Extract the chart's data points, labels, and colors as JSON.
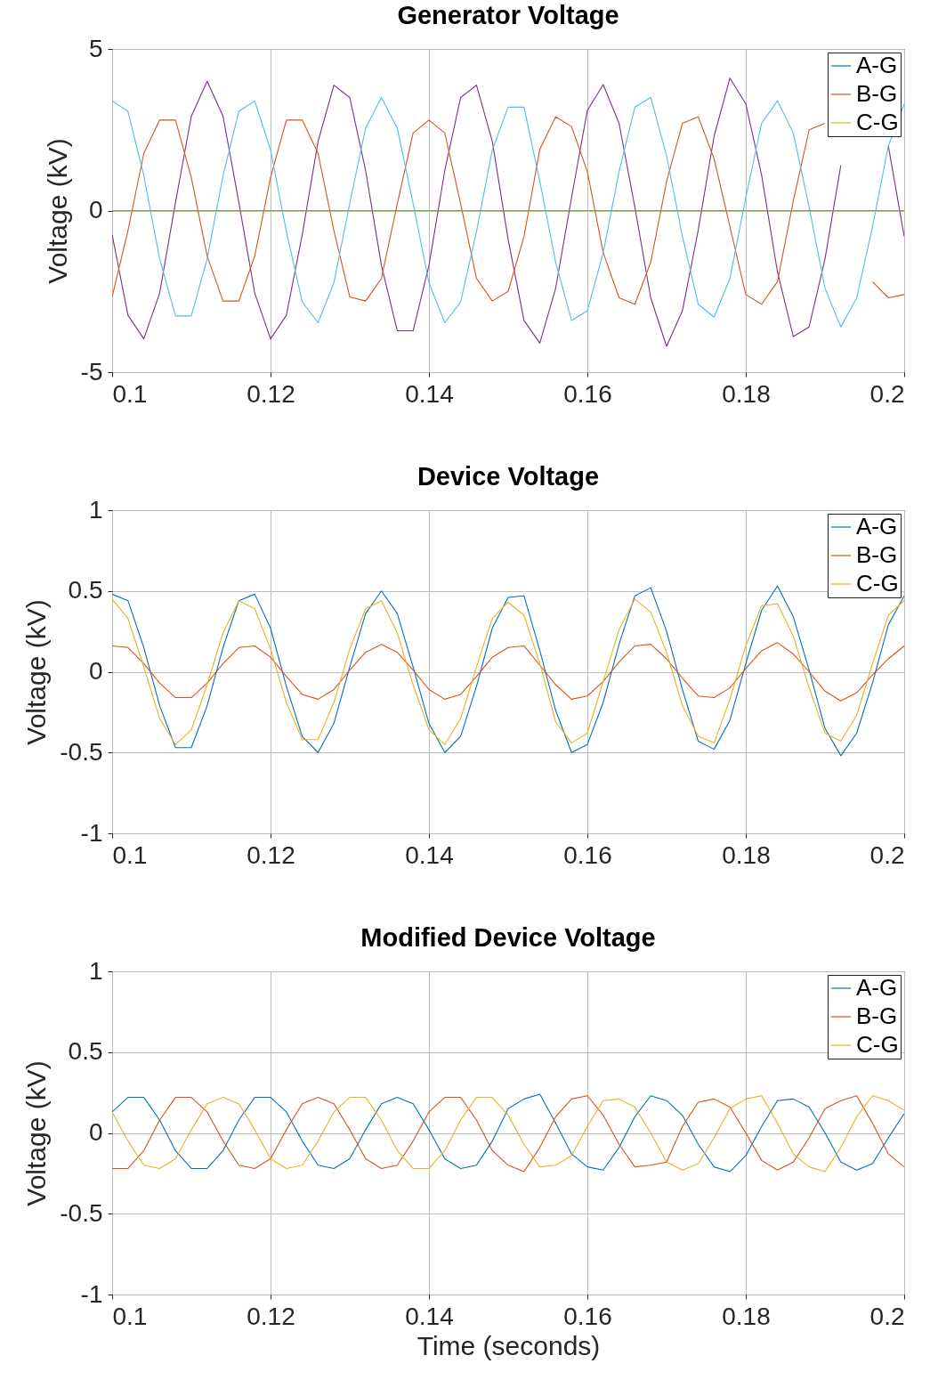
{
  "chart_data": [
    {
      "type": "line",
      "title": "Generator Voltage",
      "ylabel": "Voltage (kV)",
      "xlim": [
        0.1,
        0.2
      ],
      "xticks": [
        0.1,
        0.12,
        0.14,
        0.16,
        0.18,
        0.2
      ],
      "ylim": [
        -5,
        5
      ],
      "yticks": [
        -5,
        0,
        5
      ],
      "grid": true,
      "legend": "top right",
      "x": [
        0.1,
        0.102,
        0.104,
        0.106,
        0.108,
        0.11,
        0.112,
        0.114,
        0.116,
        0.118,
        0.12,
        0.122,
        0.124,
        0.126,
        0.128,
        0.13,
        0.132,
        0.134,
        0.136,
        0.138,
        0.14,
        0.142,
        0.144,
        0.146,
        0.148,
        0.15,
        0.152,
        0.154,
        0.156,
        0.158,
        0.16,
        0.162,
        0.164,
        0.166,
        0.168,
        0.17,
        0.172,
        0.174,
        0.176,
        0.178,
        0.18,
        0.182,
        0.184,
        0.186,
        0.188,
        0.19,
        0.192,
        0.194,
        0.196,
        0.198,
        0.2
      ],
      "series": [
        {
          "name": "A-G",
          "color": "#0072bd",
          "values": [
            null,
            null,
            null,
            null,
            null,
            null,
            null,
            null,
            null,
            null,
            null,
            null,
            null,
            null,
            null,
            null,
            null,
            null,
            null,
            null,
            null,
            null,
            null,
            null,
            null,
            null,
            null,
            null,
            null,
            null,
            null,
            null,
            null,
            null,
            null,
            null,
            null,
            null,
            null,
            null,
            null,
            null,
            null,
            null,
            null,
            null,
            null,
            null,
            null,
            null,
            null
          ]
        },
        {
          "color": "#7e2f8e",
          "values": [
            -0.75,
            -3.24,
            -3.97,
            -2.55,
            0.25,
            2.92,
            4,
            2.92,
            0.25,
            -2.55,
            -3.97,
            -3.24,
            -0.75,
            2.14,
            3.88,
            3.5,
            1.24,
            -1.7,
            -3.72,
            -3.72,
            -1.7,
            1.24,
            3.5,
            3.88,
            2.14,
            -0.9,
            -3.4,
            -4.1,
            -2.4,
            0.4,
            3.1,
            3.9,
            2.7,
            0.1,
            -2.7,
            -4.2,
            -3.1,
            -0.6,
            2.3,
            4.1,
            3.3,
            1.1,
            -1.9,
            -3.9,
            -3.6,
            -1.5,
            1.4,
            null,
            null,
            2.0,
            -0.8
          ]
        },
        {
          "name": "B-G",
          "color": "#d95319",
          "values": [
            -2.67,
            -0.62,
            1.77,
            2.8,
            2.8,
            1.02,
            -1.41,
            -2.8,
            -2.8,
            -1.41,
            1.02,
            2.8,
            2.8,
            1.77,
            -0.62,
            -2.67,
            -2.8,
            -2.1,
            0.21,
            2.4,
            2.8,
            2.4,
            0.21,
            -2.1,
            -2.8,
            -2.5,
            -0.8,
            1.9,
            2.9,
            2.6,
            1.2,
            -1.3,
            -2.7,
            -2.9,
            -1.6,
            0.9,
            2.7,
            2.9,
            1.6,
            -0.5,
            -2.6,
            -2.9,
            -2.2,
            0.3,
            2.5,
            2.7,
            null,
            null,
            -2.2,
            -2.7,
            -2.6
          ]
        },
        {
          "name": "C-G",
          "color": "#edb120",
          "values": [
            null,
            null,
            null,
            null,
            null,
            null,
            null,
            null,
            null,
            null,
            null,
            null,
            null,
            null,
            null,
            null,
            null,
            null,
            null,
            null,
            null,
            null,
            null,
            null,
            null,
            null,
            null,
            null,
            null,
            null,
            null,
            null,
            null,
            null,
            null,
            null,
            null,
            null,
            null,
            null,
            null,
            null,
            null,
            null,
            null,
            null,
            null,
            null,
            null,
            null,
            null
          ]
        },
        {
          "color": "#4dbeee",
          "values": [
            3.39,
            3.07,
            1.08,
            -1.49,
            -3.26,
            -3.26,
            -1.49,
            1.08,
            3.07,
            3.39,
            1.88,
            -0.65,
            -2.83,
            -3.47,
            -2.23,
            0.22,
            2.55,
            3.5,
            2.55,
            0.22,
            -2.23,
            -3.47,
            -2.83,
            -0.65,
            1.88,
            3.2,
            3.2,
            0.9,
            -1.6,
            -3.4,
            -3.1,
            -1.3,
            1.2,
            3.2,
            3.5,
            1.7,
            -0.8,
            -2.9,
            -3.3,
            -2.1,
            0.4,
            2.7,
            3.4,
            2.4,
            0.1,
            -2.4,
            -3.6,
            -2.7,
            -0.5,
            2.0,
            3.3
          ]
        },
        {
          "color": "#77ac30",
          "x": [
            0.1,
            0.2
          ],
          "values": [
            0,
            0
          ]
        }
      ]
    },
    {
      "type": "line",
      "title": "Device Voltage",
      "ylabel": "Voltage (kV)",
      "xlim": [
        0.1,
        0.2
      ],
      "xticks": [
        0.1,
        0.12,
        0.14,
        0.16,
        0.18,
        0.2
      ],
      "ylim": [
        -1,
        1
      ],
      "yticks": [
        -1,
        -0.5,
        0,
        0.5,
        1
      ],
      "grid": true,
      "legend": "top right",
      "x": [
        0.1,
        0.102,
        0.104,
        0.106,
        0.108,
        0.11,
        0.112,
        0.114,
        0.116,
        0.118,
        0.12,
        0.122,
        0.124,
        0.126,
        0.128,
        0.13,
        0.132,
        0.134,
        0.136,
        0.138,
        0.14,
        0.142,
        0.144,
        0.146,
        0.148,
        0.15,
        0.152,
        0.154,
        0.156,
        0.158,
        0.16,
        0.162,
        0.164,
        0.166,
        0.168,
        0.17,
        0.172,
        0.174,
        0.176,
        0.178,
        0.18,
        0.182,
        0.184,
        0.186,
        0.188,
        0.19,
        0.192,
        0.194,
        0.196,
        0.198,
        0.2
      ],
      "series": [
        {
          "name": "A-G",
          "color": "#0072bd",
          "values": [
            0.48,
            0.44,
            0.15,
            -0.21,
            -0.47,
            -0.47,
            -0.21,
            0.15,
            0.44,
            0.48,
            0.27,
            -0.09,
            -0.4,
            -0.5,
            -0.32,
            0.03,
            0.36,
            0.5,
            0.36,
            0.03,
            -0.32,
            -0.5,
            -0.4,
            -0.09,
            0.27,
            0.46,
            0.47,
            0.13,
            -0.24,
            -0.5,
            -0.45,
            -0.19,
            0.17,
            0.47,
            0.52,
            0.25,
            -0.11,
            -0.43,
            -0.48,
            -0.3,
            0.05,
            0.38,
            0.53,
            0.34,
            0.01,
            -0.35,
            -0.52,
            -0.38,
            -0.07,
            0.29,
            0.47
          ]
        },
        {
          "name": "B-G",
          "color": "#d95319",
          "values": [
            0.16,
            0.15,
            0.05,
            -0.07,
            -0.16,
            -0.16,
            -0.07,
            0.05,
            0.15,
            0.16,
            0.09,
            -0.03,
            -0.14,
            -0.17,
            -0.11,
            0.01,
            0.12,
            0.17,
            0.12,
            0.01,
            -0.11,
            -0.17,
            -0.14,
            -0.03,
            0.09,
            0.15,
            0.16,
            0.04,
            -0.08,
            -0.17,
            -0.15,
            -0.06,
            0.06,
            0.16,
            0.17,
            0.08,
            -0.04,
            -0.15,
            -0.16,
            -0.1,
            0.02,
            0.13,
            0.18,
            0.11,
            0,
            -0.12,
            -0.18,
            -0.13,
            -0.02,
            0.08,
            0.16
          ]
        },
        {
          "name": "C-G",
          "color": "#edb120",
          "values": [
            0.45,
            0.33,
            0.03,
            -0.29,
            -0.45,
            -0.36,
            -0.08,
            0.24,
            0.44,
            0.39,
            0.14,
            -0.19,
            -0.42,
            -0.42,
            -0.19,
            0.14,
            0.39,
            0.44,
            0.24,
            -0.08,
            -0.36,
            -0.45,
            -0.29,
            0.03,
            0.33,
            0.43,
            0.35,
            0.05,
            -0.31,
            -0.44,
            -0.38,
            -0.06,
            0.26,
            0.45,
            0.37,
            0.12,
            -0.21,
            -0.4,
            -0.44,
            -0.17,
            0.16,
            0.41,
            0.42,
            0.22,
            -0.1,
            -0.38,
            -0.43,
            -0.27,
            0.05,
            0.35,
            0.44
          ]
        }
      ]
    },
    {
      "type": "line",
      "title": "Modified Device Voltage",
      "xlabel": "Time (seconds)",
      "ylabel": "Voltage (kV)",
      "xlim": [
        0.1,
        0.2
      ],
      "xticks": [
        0.1,
        0.12,
        0.14,
        0.16,
        0.18,
        0.2
      ],
      "ylim": [
        -1,
        1
      ],
      "yticks": [
        -1,
        -0.5,
        0,
        0.5,
        1
      ],
      "grid": true,
      "legend": "top right",
      "x": [
        0.1,
        0.102,
        0.104,
        0.106,
        0.108,
        0.11,
        0.112,
        0.114,
        0.116,
        0.118,
        0.12,
        0.122,
        0.124,
        0.126,
        0.128,
        0.13,
        0.132,
        0.134,
        0.136,
        0.138,
        0.14,
        0.142,
        0.144,
        0.146,
        0.148,
        0.15,
        0.152,
        0.154,
        0.156,
        0.158,
        0.16,
        0.162,
        0.164,
        0.166,
        0.168,
        0.17,
        0.172,
        0.174,
        0.176,
        0.178,
        0.18,
        0.182,
        0.184,
        0.186,
        0.188,
        0.19,
        0.192,
        0.194,
        0.196,
        0.198,
        0.2
      ],
      "series": [
        {
          "name": "A-G",
          "color": "#0072bd",
          "values": [
            0.13,
            0.22,
            0.22,
            0.08,
            -0.11,
            -0.22,
            -0.22,
            -0.11,
            0.08,
            0.22,
            0.22,
            0.13,
            -0.05,
            -0.2,
            -0.22,
            -0.16,
            0.02,
            0.18,
            0.22,
            0.18,
            0.02,
            -0.16,
            -0.22,
            -0.2,
            -0.05,
            0.15,
            0.21,
            0.24,
            0.06,
            -0.13,
            -0.21,
            -0.23,
            -0.09,
            0.1,
            0.23,
            0.2,
            0.11,
            -0.07,
            -0.21,
            -0.24,
            -0.14,
            0.04,
            0.2,
            0.21,
            0.16,
            0,
            -0.18,
            -0.23,
            -0.19,
            -0.03,
            0.12
          ]
        },
        {
          "name": "B-G",
          "color": "#d95319",
          "values": [
            -0.22,
            -0.22,
            -0.11,
            0.08,
            0.22,
            0.22,
            0.13,
            -0.05,
            -0.2,
            -0.22,
            -0.16,
            0.02,
            0.18,
            0.22,
            0.18,
            0.02,
            -0.16,
            -0.22,
            -0.2,
            -0.05,
            0.13,
            0.22,
            0.22,
            0.08,
            -0.11,
            -0.2,
            -0.24,
            -0.09,
            0.1,
            0.21,
            0.23,
            0.11,
            -0.07,
            -0.21,
            -0.2,
            -0.18,
            0.04,
            0.19,
            0.21,
            0.16,
            0,
            -0.17,
            -0.23,
            -0.18,
            -0.03,
            0.15,
            0.2,
            0.23,
            0.06,
            -0.13,
            -0.21
          ]
        },
        {
          "name": "C-G",
          "color": "#edb120",
          "values": [
            0.13,
            -0.05,
            -0.2,
            -0.22,
            -0.16,
            0.02,
            0.18,
            0.22,
            0.18,
            0.02,
            -0.16,
            -0.22,
            -0.2,
            -0.05,
            0.13,
            0.22,
            0.22,
            0.08,
            -0.11,
            -0.22,
            -0.22,
            -0.11,
            0.08,
            0.22,
            0.22,
            0.11,
            -0.07,
            -0.21,
            -0.2,
            -0.14,
            0.04,
            0.2,
            0.21,
            0.16,
            0,
            -0.18,
            -0.23,
            -0.19,
            -0.03,
            0.15,
            0.21,
            0.23,
            0.06,
            -0.13,
            -0.21,
            -0.24,
            -0.09,
            0.1,
            0.23,
            0.2,
            0.14
          ]
        }
      ]
    }
  ]
}
